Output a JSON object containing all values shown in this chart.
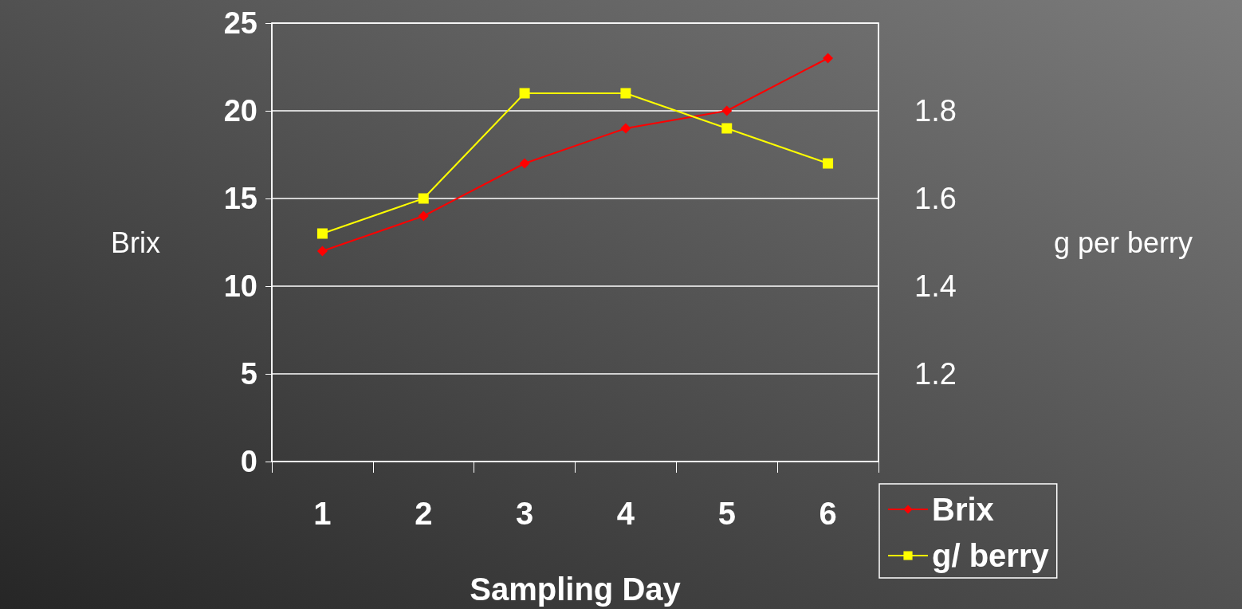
{
  "chart_data": {
    "type": "line",
    "xlabel": "Sampling Day",
    "ylabel": "Brix",
    "y2label": "g per berry",
    "categories": [
      "1",
      "2",
      "3",
      "4",
      "5",
      "6"
    ],
    "series": [
      {
        "name": "Brix",
        "color": "#ff0000",
        "marker": "diamond",
        "values": [
          12,
          14,
          17,
          19,
          20,
          23
        ]
      },
      {
        "name": "g/ berry",
        "color": "#ffff00",
        "marker": "square",
        "axis": "y2",
        "values": [
          1.52,
          1.6,
          1.84,
          1.84,
          1.76,
          1.68
        ]
      }
    ],
    "ylim": [
      0,
      25
    ],
    "yticks": [
      0,
      5,
      10,
      15,
      20,
      25
    ],
    "y2lim": [
      1.0,
      2.0
    ],
    "y2ticks": [
      1.2,
      1.4,
      1.6,
      1.8
    ],
    "grid": "y",
    "legend": "bottom right",
    "line_style": "solid"
  }
}
